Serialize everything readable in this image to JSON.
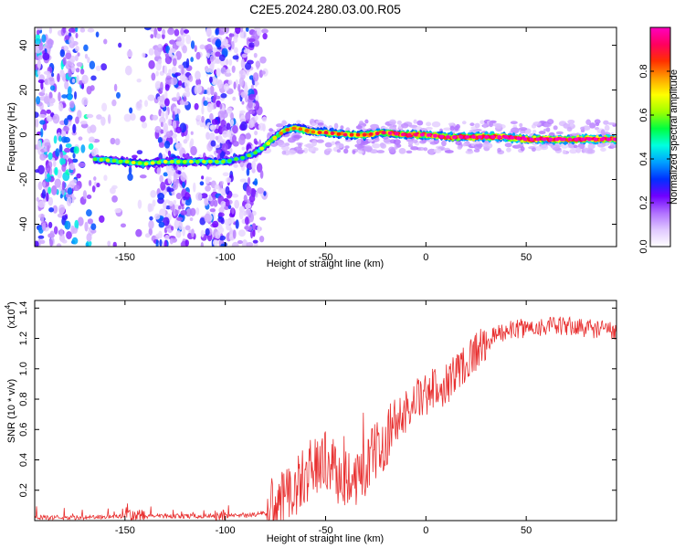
{
  "figure_title": "C2E5.2024.280.03.00.R05",
  "chart_data": [
    {
      "type": "heatmap",
      "panel": "spectrogram",
      "xlabel": "Height of straight line (km)",
      "ylabel": "Frequency (Hz)",
      "xlim": [
        -195,
        95
      ],
      "ylim": [
        -50,
        48
      ],
      "x_ticks": [
        -150,
        -100,
        -50,
        0,
        50
      ],
      "y_ticks": [
        -40,
        -20,
        0,
        20,
        40
      ],
      "colorbar": {
        "label": "Normalized spectral amplitude",
        "range": [
          0,
          1
        ],
        "ticks": [
          0.0,
          0.2,
          0.4,
          0.6,
          0.8
        ],
        "colormap": [
          "#ffffff",
          "#e0c8ff",
          "#b070ff",
          "#7000ff",
          "#0030ff",
          "#00a0ff",
          "#00ffe0",
          "#00ff40",
          "#a0ff00",
          "#ffff00",
          "#ffa000",
          "#ff3000",
          "#ff0060",
          "#ff00c0"
        ]
      },
      "signal_track": {
        "x": [
          -165,
          -150,
          -140,
          -130,
          -120,
          -110,
          -100,
          -95,
          -90,
          -85,
          -80,
          -75,
          -70,
          -65,
          -60,
          -55,
          -50,
          -40,
          -30,
          -20,
          -10,
          0,
          10,
          20,
          30,
          40,
          50,
          60,
          70,
          80,
          95
        ],
        "freq": [
          -11,
          -12,
          -13,
          -12,
          -12,
          -12,
          -12,
          -11,
          -10,
          -8,
          -5,
          -1,
          2,
          3,
          2,
          1,
          1,
          0,
          0,
          1,
          0,
          0,
          -1,
          -1,
          -1,
          -1,
          -2,
          -2,
          -2,
          -2,
          -2
        ],
        "amplitude": [
          0.45,
          0.5,
          0.5,
          0.5,
          0.5,
          0.45,
          0.45,
          0.4,
          0.4,
          0.45,
          0.55,
          0.6,
          0.65,
          0.7,
          0.7,
          0.7,
          0.7,
          0.75,
          0.75,
          0.8,
          0.85,
          0.85,
          0.85,
          0.85,
          0.9,
          0.9,
          0.9,
          0.92,
          0.92,
          0.92,
          0.9
        ]
      },
      "noise_region": {
        "x_range": [
          -195,
          -80
        ],
        "amplitude_range": [
          0.05,
          0.35
        ]
      }
    },
    {
      "type": "line",
      "panel": "snr",
      "xlabel": "Height of straight line (km)",
      "ylabel": "SNR (10 * v/v)",
      "y_multiplier": "(x10",
      "y_multiplier_exp": "4",
      "xlim": [
        -195,
        95
      ],
      "ylim": [
        0,
        1.45
      ],
      "x_ticks": [
        -150,
        -100,
        -50,
        0,
        50
      ],
      "y_ticks": [
        0.2,
        0.4,
        0.6,
        0.8,
        1.0,
        1.2,
        1.4
      ],
      "color": "#e83030",
      "series": [
        {
          "x": [
            -195,
            -170,
            -150,
            -130,
            -110,
            -90,
            -80,
            -75,
            -70,
            -65,
            -60,
            -55,
            -50,
            -45,
            -40,
            -35,
            -30,
            -25,
            -20,
            -15,
            -10,
            -5,
            0,
            5,
            10,
            15,
            20,
            25,
            30,
            35,
            40,
            50,
            60,
            70,
            80,
            95
          ],
          "values": [
            0.02,
            0.02,
            0.03,
            0.03,
            0.03,
            0.03,
            0.05,
            0.1,
            0.15,
            0.22,
            0.3,
            0.38,
            0.4,
            0.32,
            0.28,
            0.3,
            0.35,
            0.45,
            0.55,
            0.65,
            0.72,
            0.8,
            0.82,
            0.88,
            0.9,
            0.98,
            1.05,
            1.12,
            1.18,
            1.22,
            1.25,
            1.27,
            1.28,
            1.28,
            1.27,
            1.25
          ]
        }
      ]
    }
  ]
}
